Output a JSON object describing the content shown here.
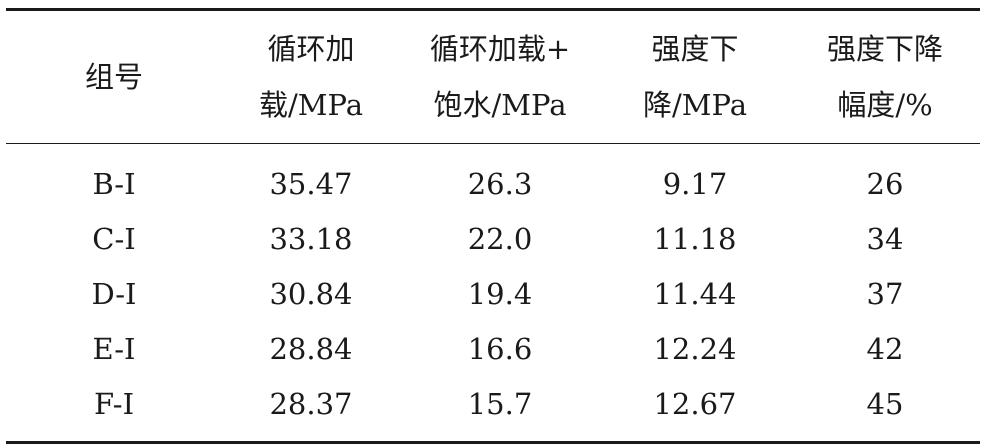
{
  "table": {
    "headers": [
      [
        "组号"
      ],
      [
        "循环加",
        "载/MPa"
      ],
      [
        "循环加载+",
        "饱水/MPa"
      ],
      [
        "强度下",
        "降/MPa"
      ],
      [
        "强度下降",
        "幅度/%"
      ]
    ],
    "rows": [
      [
        "B-I",
        "35.47",
        "26.3",
        "9.17",
        "26"
      ],
      [
        "C-I",
        "33.18",
        "22.0",
        "11.18",
        "34"
      ],
      [
        "D-I",
        "30.84",
        "19.4",
        "11.44",
        "37"
      ],
      [
        "E-I",
        "28.84",
        "16.6",
        "12.24",
        "42"
      ],
      [
        "F-I",
        "28.37",
        "15.7",
        "12.67",
        "45"
      ]
    ]
  }
}
